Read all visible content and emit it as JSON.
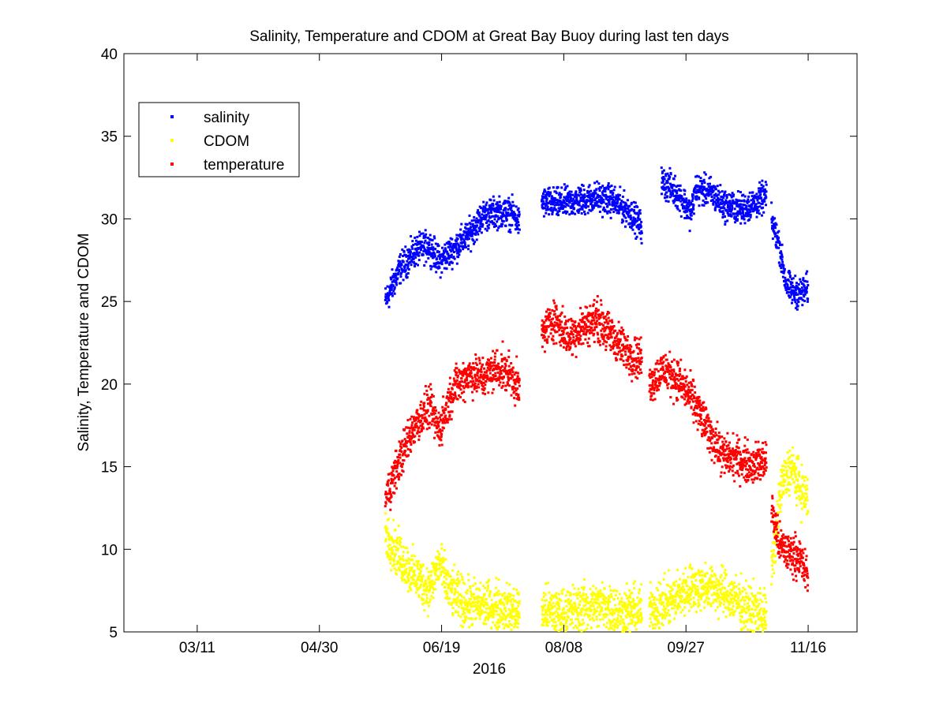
{
  "chart_data": {
    "type": "scatter",
    "title": "Salinity, Temperature and CDOM at Great Bay Buoy during last ten days",
    "xlabel": "2016",
    "ylabel": "Salinity, Temperature and CDOM",
    "xlim": [
      "2016-02-10",
      "2016-12-06"
    ],
    "ylim": [
      5,
      40
    ],
    "x_ticks": [
      "2016-03-11",
      "2016-04-30",
      "2016-06-19",
      "2016-08-08",
      "2016-09-27",
      "2016-11-16"
    ],
    "x_tick_labels": [
      "03/11",
      "04/30",
      "06/19",
      "08/08",
      "09/27",
      "11/16"
    ],
    "y_ticks": [
      5,
      10,
      15,
      20,
      25,
      30,
      35,
      40
    ],
    "grid": false,
    "legend": {
      "position": "top-left"
    },
    "series": [
      {
        "name": "salinity",
        "color": "#0000ff",
        "spread": 0.9,
        "segments": [
          [
            [
              "2016-05-27",
              25.0
            ],
            [
              "2016-06-02",
              27.0
            ],
            [
              "2016-06-08",
              28.0
            ],
            [
              "2016-06-14",
              28.4
            ],
            [
              "2016-06-18",
              27.4
            ],
            [
              "2016-06-24",
              28.2
            ],
            [
              "2016-06-30",
              29.0
            ],
            [
              "2016-07-06",
              30.2
            ],
            [
              "2016-07-12",
              30.4
            ],
            [
              "2016-07-18",
              30.3
            ],
            [
              "2016-07-21",
              29.7
            ]
          ],
          [
            [
              "2016-07-30",
              31.0
            ],
            [
              "2016-08-06",
              30.9
            ],
            [
              "2016-08-14",
              31.1
            ],
            [
              "2016-08-22",
              31.3
            ],
            [
              "2016-08-28",
              31.1
            ],
            [
              "2016-09-04",
              30.4
            ],
            [
              "2016-09-09",
              29.5
            ]
          ],
          [
            [
              "2016-09-17",
              32.2
            ],
            [
              "2016-09-21",
              31.9
            ],
            [
              "2016-09-25",
              31.3
            ],
            [
              "2016-09-29",
              30.3
            ],
            [
              "2016-10-01",
              31.8
            ],
            [
              "2016-10-07",
              31.6
            ],
            [
              "2016-10-13",
              30.8
            ],
            [
              "2016-10-20",
              30.6
            ],
            [
              "2016-10-26",
              31.0
            ],
            [
              "2016-10-30",
              31.4
            ]
          ],
          [
            [
              "2016-11-01",
              29.9
            ],
            [
              "2016-11-04",
              28.5
            ],
            [
              "2016-11-07",
              26.0
            ],
            [
              "2016-11-10",
              25.6
            ],
            [
              "2016-11-13",
              25.5
            ],
            [
              "2016-11-16",
              25.8
            ]
          ]
        ]
      },
      {
        "name": "CDOM",
        "color": "#ffff00",
        "spread": 1.4,
        "segments": [
          [
            [
              "2016-05-27",
              11.0
            ],
            [
              "2016-06-02",
              9.5
            ],
            [
              "2016-06-08",
              8.4
            ],
            [
              "2016-06-14",
              7.6
            ],
            [
              "2016-06-18",
              9.2
            ],
            [
              "2016-06-22",
              7.5
            ],
            [
              "2016-06-28",
              6.8
            ],
            [
              "2016-07-06",
              6.6
            ],
            [
              "2016-07-14",
              6.5
            ],
            [
              "2016-07-21",
              6.2
            ]
          ],
          [
            [
              "2016-07-30",
              6.3
            ],
            [
              "2016-08-08",
              6.2
            ],
            [
              "2016-08-16",
              6.5
            ],
            [
              "2016-08-24",
              6.6
            ],
            [
              "2016-09-01",
              6.2
            ],
            [
              "2016-09-09",
              6.4
            ]
          ],
          [
            [
              "2016-09-12",
              6.3
            ],
            [
              "2016-09-20",
              6.8
            ],
            [
              "2016-09-28",
              7.6
            ],
            [
              "2016-10-06",
              7.8
            ],
            [
              "2016-10-14",
              7.2
            ],
            [
              "2016-10-22",
              6.5
            ],
            [
              "2016-10-30",
              6.0
            ]
          ],
          [
            [
              "2016-11-01",
              8.5
            ],
            [
              "2016-11-05",
              13.8
            ],
            [
              "2016-11-09",
              15.0
            ],
            [
              "2016-11-13",
              13.6
            ],
            [
              "2016-11-16",
              13.0
            ]
          ]
        ]
      },
      {
        "name": "temperature",
        "color": "#ff0000",
        "spread": 1.2,
        "segments": [
          [
            [
              "2016-05-27",
              13.0
            ],
            [
              "2016-06-02",
              15.5
            ],
            [
              "2016-06-08",
              17.5
            ],
            [
              "2016-06-14",
              18.6
            ],
            [
              "2016-06-18",
              17.2
            ],
            [
              "2016-06-24",
              19.8
            ],
            [
              "2016-06-30",
              20.6
            ],
            [
              "2016-07-06",
              20.4
            ],
            [
              "2016-07-12",
              21.0
            ],
            [
              "2016-07-18",
              20.5
            ],
            [
              "2016-07-21",
              19.5
            ]
          ],
          [
            [
              "2016-07-30",
              23.0
            ],
            [
              "2016-08-04",
              24.0
            ],
            [
              "2016-08-10",
              22.8
            ],
            [
              "2016-08-16",
              23.5
            ],
            [
              "2016-08-22",
              23.9
            ],
            [
              "2016-08-28",
              22.8
            ],
            [
              "2016-09-04",
              21.8
            ],
            [
              "2016-09-09",
              21.5
            ]
          ],
          [
            [
              "2016-09-12",
              20.0
            ],
            [
              "2016-09-18",
              20.9
            ],
            [
              "2016-09-24",
              20.2
            ],
            [
              "2016-09-30",
              19.0
            ],
            [
              "2016-10-06",
              17.2
            ],
            [
              "2016-10-12",
              15.7
            ],
            [
              "2016-10-18",
              15.5
            ],
            [
              "2016-10-24",
              15.1
            ],
            [
              "2016-10-30",
              15.4
            ]
          ],
          [
            [
              "2016-11-01",
              12.5
            ],
            [
              "2016-11-04",
              10.3
            ],
            [
              "2016-11-08",
              9.8
            ],
            [
              "2016-11-12",
              9.6
            ],
            [
              "2016-11-16",
              8.3
            ]
          ]
        ]
      }
    ]
  }
}
